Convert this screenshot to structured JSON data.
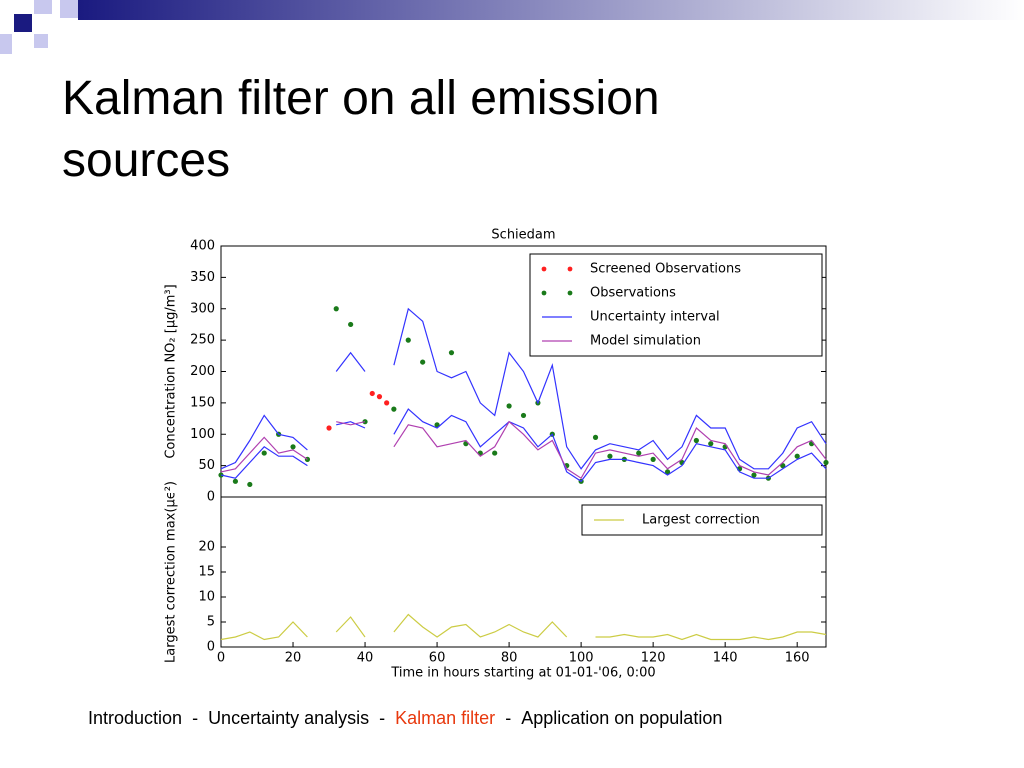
{
  "slide": {
    "title": "Kalman filter on all emission sources"
  },
  "chart_data": [
    {
      "type": "line",
      "title": "Schiedam",
      "ylabel": "Concentration NO₂ [μg/m³]",
      "x": [
        0,
        4,
        8,
        12,
        16,
        20,
        24,
        28,
        32,
        36,
        40,
        44,
        48,
        52,
        56,
        60,
        64,
        68,
        72,
        76,
        80,
        84,
        88,
        92,
        96,
        100,
        104,
        108,
        112,
        116,
        120,
        124,
        128,
        132,
        136,
        140,
        144,
        148,
        152,
        156,
        160,
        164,
        168
      ],
      "xlim": [
        0,
        168
      ],
      "ylim": [
        0,
        400
      ],
      "yticks": [
        0,
        50,
        100,
        150,
        200,
        250,
        300,
        350,
        400
      ],
      "legend": "upper right",
      "series": [
        {
          "name": "Screened Observations",
          "style": "markers",
          "color": "#ff2020",
          "x": [
            30,
            42,
            44,
            46
          ],
          "values": [
            110,
            165,
            160,
            150
          ]
        },
        {
          "name": "Observations",
          "style": "markers",
          "color": "#1a7a1a",
          "values": [
            35,
            25,
            20,
            70,
            100,
            80,
            60,
            null,
            300,
            275,
            120,
            null,
            140,
            250,
            215,
            115,
            230,
            85,
            70,
            70,
            145,
            130,
            150,
            100,
            50,
            25,
            95,
            65,
            60,
            70,
            60,
            40,
            55,
            90,
            85,
            80,
            45,
            35,
            30,
            50,
            65,
            85,
            55
          ]
        },
        {
          "name": "Uncertainty interval",
          "style": "band",
          "color": "#3333ff",
          "upper": [
            45,
            55,
            90,
            130,
            100,
            95,
            75,
            null,
            200,
            230,
            200,
            null,
            210,
            300,
            280,
            200,
            190,
            200,
            150,
            130,
            230,
            200,
            150,
            210,
            80,
            45,
            75,
            85,
            80,
            75,
            90,
            60,
            80,
            130,
            110,
            110,
            60,
            45,
            45,
            70,
            110,
            120,
            85
          ],
          "lower": [
            35,
            30,
            55,
            80,
            65,
            65,
            50,
            null,
            115,
            120,
            110,
            null,
            100,
            140,
            120,
            110,
            130,
            120,
            80,
            100,
            120,
            110,
            80,
            100,
            40,
            25,
            55,
            60,
            60,
            55,
            50,
            35,
            50,
            85,
            80,
            75,
            40,
            30,
            30,
            45,
            60,
            70,
            45
          ]
        },
        {
          "name": "Model simulation",
          "style": "line",
          "color": "#b040b0",
          "values": [
            40,
            45,
            70,
            95,
            70,
            75,
            60,
            null,
            120,
            115,
            120,
            null,
            80,
            115,
            110,
            80,
            85,
            90,
            65,
            80,
            120,
            100,
            75,
            90,
            45,
            30,
            70,
            75,
            70,
            65,
            70,
            45,
            60,
            110,
            90,
            85,
            50,
            40,
            35,
            55,
            80,
            90,
            60
          ]
        }
      ]
    },
    {
      "type": "line",
      "ylabel": "Largest correction max(μϵ²)",
      "xlabel": "Time in hours starting at 01-01-'06, 0:00",
      "x": [
        0,
        4,
        8,
        12,
        16,
        20,
        24,
        28,
        32,
        36,
        40,
        44,
        48,
        52,
        56,
        60,
        64,
        68,
        72,
        76,
        80,
        84,
        88,
        92,
        96,
        100,
        104,
        108,
        112,
        116,
        120,
        124,
        128,
        132,
        136,
        140,
        144,
        148,
        152,
        156,
        160,
        164,
        168
      ],
      "xlim": [
        0,
        168
      ],
      "ylim": [
        0,
        30
      ],
      "xticks": [
        0,
        20,
        40,
        60,
        80,
        100,
        120,
        140,
        160
      ],
      "yticks": [
        0,
        5,
        10,
        15,
        20
      ],
      "legend": "upper right",
      "series": [
        {
          "name": "Largest correction",
          "style": "line",
          "color": "#cccc44",
          "values": [
            1.5,
            2,
            3,
            1.5,
            2,
            5,
            2,
            null,
            3,
            6,
            2,
            null,
            3,
            6.5,
            4,
            2,
            4,
            4.5,
            2,
            3,
            4.5,
            3,
            2,
            5,
            2,
            null,
            2,
            2,
            2.5,
            2,
            2,
            2.5,
            1.5,
            2.5,
            1.5,
            1.5,
            1.5,
            2,
            1.5,
            2,
            3,
            3,
            2.5
          ]
        }
      ]
    }
  ],
  "footer": {
    "items": [
      "Introduction",
      "Uncertainty analysis",
      "Kalman filter",
      "Application on population"
    ],
    "separator": "-",
    "active_item": 2
  }
}
